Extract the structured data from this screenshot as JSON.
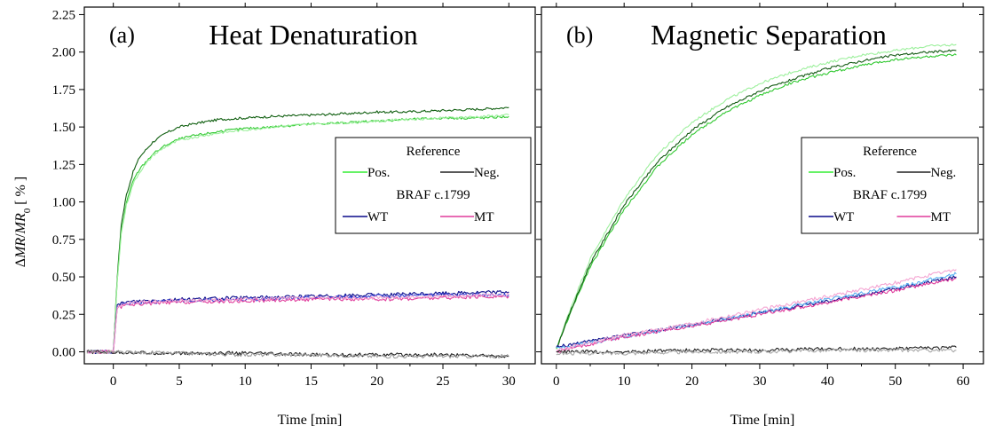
{
  "chart_data": [
    {
      "type": "line",
      "panel_label": "(a)",
      "title": "Heat Denaturation",
      "xlabel": "Time [min]",
      "ylabel_parts": [
        "Δ",
        "MR",
        "/",
        "MR",
        "0",
        " [ % ]"
      ],
      "xlim": [
        -2.2,
        32
      ],
      "ylim": [
        -0.08,
        2.3
      ],
      "xticks": [
        0,
        5,
        10,
        15,
        20,
        25,
        30
      ],
      "xtick_labels": [
        "0",
        "5",
        "10",
        "15",
        "20",
        "25",
        "30"
      ],
      "yticks": [
        0,
        0.25,
        0.5,
        0.75,
        1.0,
        1.25,
        1.5,
        1.75,
        2.0,
        2.25
      ],
      "ytick_labels": [
        "0.00",
        "0.25",
        "0.50",
        "0.75",
        "1.00",
        "1.25",
        "1.50",
        "1.75",
        "2.00",
        "2.25"
      ],
      "legend": {
        "placement": "center-right",
        "reference_heading": "Reference",
        "target_heading": "BRAF c.1799",
        "entries": [
          {
            "label": "Pos.",
            "color": "#33ee33"
          },
          {
            "label": "Neg.",
            "color": "#222222"
          },
          {
            "label": "WT",
            "color": "#0a0a8a"
          },
          {
            "label": "MT",
            "color": "#e03c9c"
          }
        ]
      },
      "series": [
        {
          "group": "Pos.",
          "color": "#0f5e0f",
          "x": [
            -2.0,
            0.0,
            0.3,
            0.6,
            1.0,
            1.5,
            2.0,
            3.0,
            4.0,
            5.0,
            6.0,
            8.0,
            10.0,
            12.0,
            15.0,
            18.0,
            20.0,
            22.0,
            25.0,
            28.0,
            30.0
          ],
          "y": [
            0.0,
            0.0,
            0.5,
            0.85,
            1.05,
            1.2,
            1.3,
            1.4,
            1.46,
            1.5,
            1.52,
            1.55,
            1.56,
            1.57,
            1.58,
            1.59,
            1.6,
            1.6,
            1.61,
            1.62,
            1.63
          ]
        },
        {
          "group": "Pos.",
          "color": "#30c830",
          "x": [
            -2.0,
            0.0,
            0.3,
            0.6,
            1.0,
            1.5,
            2.0,
            3.0,
            4.0,
            5.0,
            6.0,
            8.0,
            10.0,
            12.0,
            15.0,
            18.0,
            20.0,
            22.0,
            25.0,
            28.0,
            30.0
          ],
          "y": [
            0.0,
            0.0,
            0.48,
            0.8,
            1.0,
            1.14,
            1.22,
            1.32,
            1.38,
            1.42,
            1.44,
            1.47,
            1.49,
            1.5,
            1.52,
            1.53,
            1.54,
            1.55,
            1.56,
            1.56,
            1.57
          ]
        },
        {
          "group": "Pos.",
          "color": "#9df09d",
          "x": [
            -2.0,
            0.0,
            0.3,
            0.6,
            1.0,
            1.5,
            2.0,
            3.0,
            4.0,
            5.0,
            6.0,
            8.0,
            10.0,
            12.0,
            15.0,
            18.0,
            20.0,
            22.0,
            25.0,
            28.0,
            30.0
          ],
          "y": [
            0.0,
            0.0,
            0.47,
            0.79,
            0.98,
            1.12,
            1.2,
            1.31,
            1.37,
            1.41,
            1.43,
            1.46,
            1.48,
            1.5,
            1.52,
            1.53,
            1.54,
            1.55,
            1.56,
            1.57,
            1.58
          ]
        },
        {
          "group": "WT",
          "color": "#0a0a8a",
          "x": [
            -2.0,
            0.0,
            0.3,
            0.8,
            2.0,
            5.0,
            10.0,
            15.0,
            20.0,
            25.0,
            30.0
          ],
          "y": [
            0.0,
            0.0,
            0.31,
            0.33,
            0.34,
            0.35,
            0.36,
            0.37,
            0.38,
            0.39,
            0.4
          ]
        },
        {
          "group": "WT",
          "color": "#3a48d8",
          "x": [
            -2.0,
            0.0,
            0.3,
            0.8,
            2.0,
            5.0,
            10.0,
            15.0,
            20.0,
            25.0,
            30.0
          ],
          "y": [
            0.0,
            0.0,
            0.3,
            0.32,
            0.33,
            0.34,
            0.35,
            0.36,
            0.37,
            0.38,
            0.38
          ]
        },
        {
          "group": "MT",
          "color": "#e03c9c",
          "x": [
            -2.0,
            0.0,
            0.3,
            0.8,
            2.0,
            5.0,
            10.0,
            15.0,
            20.0,
            25.0,
            30.0
          ],
          "y": [
            0.0,
            0.0,
            0.29,
            0.31,
            0.32,
            0.33,
            0.34,
            0.35,
            0.35,
            0.36,
            0.37
          ]
        },
        {
          "group": "MT",
          "color": "#f5a6d3",
          "x": [
            -2.0,
            0.0,
            0.3,
            0.8,
            2.0,
            5.0,
            10.0,
            15.0,
            20.0,
            25.0,
            30.0
          ],
          "y": [
            0.0,
            0.0,
            0.3,
            0.32,
            0.33,
            0.34,
            0.35,
            0.36,
            0.36,
            0.37,
            0.38
          ]
        },
        {
          "group": "Neg.",
          "color": "#222222",
          "x": [
            -2.0,
            5.0,
            10.0,
            15.0,
            20.0,
            25.0,
            30.0
          ],
          "y": [
            0.0,
            -0.01,
            -0.01,
            -0.02,
            -0.02,
            -0.02,
            -0.03
          ]
        },
        {
          "group": "Neg.",
          "color": "#9a9a9a",
          "x": [
            -2.0,
            5.0,
            10.0,
            15.0,
            20.0,
            25.0,
            30.0
          ],
          "y": [
            0.0,
            -0.01,
            -0.02,
            -0.02,
            -0.03,
            -0.03,
            -0.03
          ]
        }
      ]
    },
    {
      "type": "line",
      "panel_label": "(b)",
      "title": "Magnetic Separation",
      "xlabel": "Time [min]",
      "xlim": [
        -2.2,
        63
      ],
      "ylim": [
        -0.08,
        2.3
      ],
      "xticks": [
        0,
        10,
        20,
        30,
        40,
        50,
        60
      ],
      "xtick_labels": [
        "0",
        "10",
        "20",
        "30",
        "40",
        "50",
        "60"
      ],
      "yticks": [
        0,
        0.25,
        0.5,
        0.75,
        1.0,
        1.25,
        1.5,
        1.75,
        2.0,
        2.25
      ],
      "legend": {
        "placement": "center-right",
        "reference_heading": "Reference",
        "target_heading": "BRAF c.1799",
        "entries": [
          {
            "label": "Pos.",
            "color": "#33ee33"
          },
          {
            "label": "Neg.",
            "color": "#222222"
          },
          {
            "label": "WT",
            "color": "#0a0a8a"
          },
          {
            "label": "MT",
            "color": "#e03c9c"
          }
        ]
      },
      "series": [
        {
          "group": "Pos.",
          "color": "#9df09d",
          "x": [
            0,
            2,
            5,
            10,
            15,
            20,
            25,
            30,
            35,
            40,
            45,
            50,
            55,
            59
          ],
          "y": [
            0.02,
            0.28,
            0.62,
            1.02,
            1.32,
            1.53,
            1.68,
            1.79,
            1.87,
            1.93,
            1.98,
            2.01,
            2.04,
            2.05
          ]
        },
        {
          "group": "Pos.",
          "color": "#30c830",
          "x": [
            0,
            2,
            5,
            10,
            15,
            20,
            25,
            30,
            35,
            40,
            45,
            50,
            55,
            59
          ],
          "y": [
            0.02,
            0.25,
            0.57,
            0.95,
            1.24,
            1.45,
            1.6,
            1.71,
            1.8,
            1.86,
            1.91,
            1.95,
            1.97,
            1.98
          ]
        },
        {
          "group": "Pos.",
          "color": "#145a14",
          "x": [
            0,
            2,
            5,
            10,
            15,
            20,
            25,
            30,
            35,
            40,
            45,
            50,
            55,
            59
          ],
          "y": [
            0.02,
            0.26,
            0.59,
            0.98,
            1.27,
            1.48,
            1.63,
            1.74,
            1.82,
            1.89,
            1.94,
            1.98,
            2.0,
            2.01
          ]
        },
        {
          "group": "WT",
          "color": "#0a0a8a",
          "x": [
            0,
            5,
            10,
            20,
            30,
            40,
            50,
            59
          ],
          "y": [
            0.03,
            0.07,
            0.11,
            0.18,
            0.26,
            0.34,
            0.42,
            0.5
          ]
        },
        {
          "group": "WT",
          "color": "#5ab0f0",
          "x": [
            0,
            5,
            10,
            20,
            30,
            40,
            50,
            59
          ],
          "y": [
            0.02,
            0.06,
            0.1,
            0.18,
            0.26,
            0.35,
            0.43,
            0.52
          ]
        },
        {
          "group": "MT",
          "color": "#e03c9c",
          "x": [
            0,
            5,
            10,
            20,
            30,
            40,
            50,
            59
          ],
          "y": [
            0.0,
            0.05,
            0.1,
            0.17,
            0.25,
            0.33,
            0.41,
            0.49
          ]
        },
        {
          "group": "MT",
          "color": "#f5a6d3",
          "x": [
            0,
            5,
            10,
            20,
            30,
            40,
            50,
            59
          ],
          "y": [
            0.01,
            0.06,
            0.11,
            0.19,
            0.28,
            0.37,
            0.46,
            0.55
          ]
        },
        {
          "group": "Neg.",
          "color": "#222222",
          "x": [
            0,
            10,
            20,
            30,
            40,
            50,
            59
          ],
          "y": [
            0.0,
            0.0,
            0.01,
            0.01,
            0.02,
            0.02,
            0.03
          ]
        },
        {
          "group": "Neg.",
          "color": "#a8a8a8",
          "x": [
            0,
            10,
            20,
            30,
            40,
            50,
            59
          ],
          "y": [
            -0.01,
            -0.01,
            0.0,
            0.0,
            0.01,
            0.01,
            0.01
          ]
        }
      ]
    }
  ]
}
